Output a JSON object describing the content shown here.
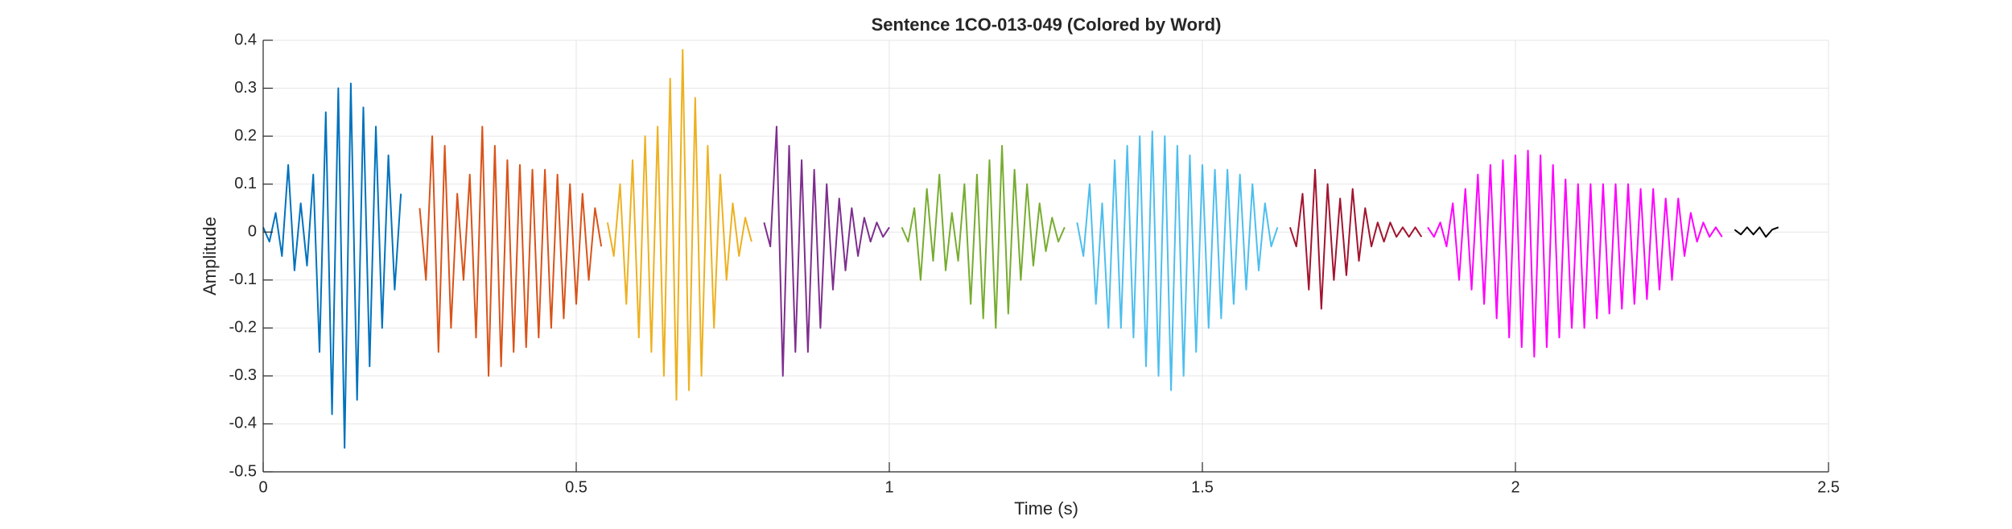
{
  "chart_data": {
    "type": "line",
    "title": "Sentence 1CO-013-049 (Colored by Word)",
    "xlabel": "Time (s)",
    "ylabel": "Amplitude",
    "xlim": [
      0,
      2.5
    ],
    "ylim": [
      -0.5,
      0.4
    ],
    "xticks": [
      0,
      0.5,
      1,
      1.5,
      2,
      2.5
    ],
    "yticks": [
      -0.5,
      -0.4,
      -0.3,
      -0.2,
      -0.1,
      0,
      0.1,
      0.2,
      0.3,
      0.4
    ],
    "grid": true,
    "series": [
      {
        "color": "#0072BD",
        "x": [
          0,
          0.01,
          0.02,
          0.03,
          0.04,
          0.05,
          0.06,
          0.07,
          0.08,
          0.09,
          0.1,
          0.11,
          0.12,
          0.13,
          0.14,
          0.15,
          0.16,
          0.17,
          0.18,
          0.19,
          0.2,
          0.21,
          0.22
        ],
        "values": [
          0.01,
          -0.02,
          0.04,
          -0.05,
          0.14,
          -0.08,
          0.06,
          -0.07,
          0.12,
          -0.25,
          0.25,
          -0.38,
          0.3,
          -0.45,
          0.31,
          -0.35,
          0.26,
          -0.28,
          0.22,
          -0.2,
          0.16,
          -0.12,
          0.08
        ]
      },
      {
        "color": "#D95319",
        "x": [
          0.25,
          0.26,
          0.27,
          0.28,
          0.29,
          0.3,
          0.31,
          0.32,
          0.33,
          0.34,
          0.35,
          0.36,
          0.37,
          0.38,
          0.39,
          0.4,
          0.41,
          0.42,
          0.43,
          0.44,
          0.45,
          0.46,
          0.47,
          0.48,
          0.49,
          0.5,
          0.51,
          0.52,
          0.53,
          0.54
        ],
        "values": [
          0.05,
          -0.1,
          0.2,
          -0.25,
          0.18,
          -0.2,
          0.08,
          -0.1,
          0.12,
          -0.22,
          0.22,
          -0.3,
          0.18,
          -0.28,
          0.15,
          -0.25,
          0.14,
          -0.24,
          0.13,
          -0.22,
          0.13,
          -0.2,
          0.12,
          -0.18,
          0.1,
          -0.15,
          0.08,
          -0.1,
          0.05,
          -0.03
        ]
      },
      {
        "color": "#EDB120",
        "x": [
          0.55,
          0.56,
          0.57,
          0.58,
          0.59,
          0.6,
          0.61,
          0.62,
          0.63,
          0.64,
          0.65,
          0.66,
          0.67,
          0.68,
          0.69,
          0.7,
          0.71,
          0.72,
          0.73,
          0.74,
          0.75,
          0.76,
          0.77,
          0.78
        ],
        "values": [
          0.02,
          -0.05,
          0.1,
          -0.15,
          0.15,
          -0.22,
          0.2,
          -0.25,
          0.22,
          -0.3,
          0.32,
          -0.35,
          0.38,
          -0.33,
          0.28,
          -0.3,
          0.18,
          -0.2,
          0.12,
          -0.1,
          0.06,
          -0.05,
          0.03,
          -0.02
        ]
      },
      {
        "color": "#7E2F8E",
        "x": [
          0.8,
          0.81,
          0.82,
          0.83,
          0.84,
          0.85,
          0.86,
          0.87,
          0.88,
          0.89,
          0.9,
          0.91,
          0.92,
          0.93,
          0.94,
          0.95,
          0.96,
          0.97,
          0.98,
          0.99,
          1
        ],
        "values": [
          0.02,
          -0.03,
          0.22,
          -0.3,
          0.18,
          -0.25,
          0.15,
          -0.25,
          0.13,
          -0.2,
          0.1,
          -0.12,
          0.07,
          -0.08,
          0.05,
          -0.05,
          0.03,
          -0.02,
          0.02,
          -0.01,
          0.01
        ]
      },
      {
        "color": "#77AC30",
        "x": [
          1.02,
          1.03,
          1.04,
          1.05,
          1.06,
          1.07,
          1.08,
          1.09,
          1.1,
          1.11,
          1.12,
          1.13,
          1.14,
          1.15,
          1.16,
          1.17,
          1.18,
          1.19,
          1.2,
          1.21,
          1.22,
          1.23,
          1.24,
          1.25,
          1.26,
          1.27,
          1.28
        ],
        "values": [
          0.01,
          -0.02,
          0.05,
          -0.1,
          0.09,
          -0.06,
          0.12,
          -0.08,
          0.04,
          -0.06,
          0.1,
          -0.15,
          0.12,
          -0.18,
          0.15,
          -0.2,
          0.18,
          -0.17,
          0.13,
          -0.1,
          0.1,
          -0.07,
          0.06,
          -0.04,
          0.03,
          -0.02,
          0.01
        ]
      },
      {
        "color": "#4DBEEE",
        "x": [
          1.3,
          1.31,
          1.32,
          1.33,
          1.34,
          1.35,
          1.36,
          1.37,
          1.38,
          1.39,
          1.4,
          1.41,
          1.42,
          1.43,
          1.44,
          1.45,
          1.46,
          1.47,
          1.48,
          1.49,
          1.5,
          1.51,
          1.52,
          1.53,
          1.54,
          1.55,
          1.56,
          1.57,
          1.58,
          1.59,
          1.6,
          1.61,
          1.62
        ],
        "values": [
          0.02,
          -0.05,
          0.1,
          -0.15,
          0.06,
          -0.2,
          0.15,
          -0.2,
          0.18,
          -0.22,
          0.2,
          -0.28,
          0.21,
          -0.3,
          0.2,
          -0.33,
          0.18,
          -0.3,
          0.16,
          -0.25,
          0.14,
          -0.2,
          0.13,
          -0.18,
          0.13,
          -0.15,
          0.12,
          -0.12,
          0.1,
          -0.08,
          0.06,
          -0.03,
          0.01
        ]
      },
      {
        "color": "#A2142F",
        "x": [
          1.64,
          1.65,
          1.66,
          1.67,
          1.68,
          1.69,
          1.7,
          1.71,
          1.72,
          1.73,
          1.74,
          1.75,
          1.76,
          1.77,
          1.78,
          1.79,
          1.8,
          1.81,
          1.82,
          1.83,
          1.84,
          1.85
        ],
        "values": [
          0.01,
          -0.03,
          0.08,
          -0.12,
          0.13,
          -0.16,
          0.1,
          -0.1,
          0.07,
          -0.09,
          0.09,
          -0.06,
          0.05,
          -0.03,
          0.02,
          -0.02,
          0.02,
          -0.01,
          0.01,
          -0.01,
          0.01,
          -0.01
        ]
      },
      {
        "color": "#FF00FF",
        "x": [
          1.86,
          1.87,
          1.88,
          1.89,
          1.9,
          1.91,
          1.92,
          1.93,
          1.94,
          1.95,
          1.96,
          1.97,
          1.98,
          1.99,
          2,
          2.01,
          2.02,
          2.03,
          2.04,
          2.05,
          2.06,
          2.07,
          2.08,
          2.09,
          2.1,
          2.11,
          2.12,
          2.13,
          2.14,
          2.15,
          2.16,
          2.17,
          2.18,
          2.19,
          2.2,
          2.21,
          2.22,
          2.23,
          2.24,
          2.25,
          2.26,
          2.27,
          2.28,
          2.29,
          2.3,
          2.31,
          2.32,
          2.33
        ],
        "values": [
          0.01,
          -0.01,
          0.02,
          -0.03,
          0.06,
          -0.1,
          0.09,
          -0.12,
          0.12,
          -0.15,
          0.14,
          -0.18,
          0.15,
          -0.22,
          0.16,
          -0.24,
          0.17,
          -0.26,
          0.16,
          -0.24,
          0.14,
          -0.22,
          0.11,
          -0.2,
          0.1,
          -0.2,
          0.1,
          -0.18,
          0.1,
          -0.17,
          0.1,
          -0.16,
          0.1,
          -0.15,
          0.09,
          -0.14,
          0.09,
          -0.12,
          0.07,
          -0.1,
          0.07,
          -0.05,
          0.04,
          -0.02,
          0.02,
          -0.01,
          0.01,
          -0.01
        ]
      },
      {
        "color": "#000000",
        "x": [
          2.35,
          2.36,
          2.37,
          2.38,
          2.39,
          2.4,
          2.41,
          2.42
        ],
        "values": [
          0.005,
          -0.005,
          0.01,
          -0.005,
          0.01,
          -0.01,
          0.005,
          0.01
        ]
      }
    ]
  }
}
